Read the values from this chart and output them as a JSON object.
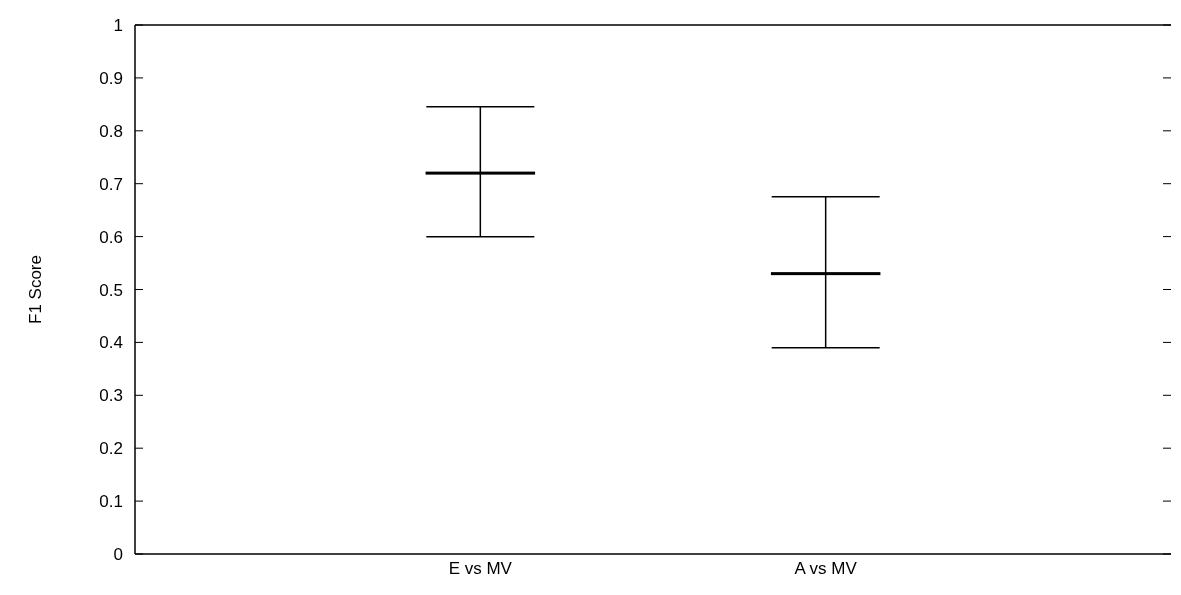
{
  "chart_data": {
    "type": "box",
    "ylabel": "F1 Score",
    "categories": [
      "E vs MV",
      "A vs MV"
    ],
    "series": [
      {
        "color": "#000000",
        "boxes": [
          {
            "low": 0.6,
            "q1": 0.72,
            "median": 0.72,
            "q3": 0.72,
            "high": 0.845
          },
          {
            "low": 0.39,
            "q1": 0.53,
            "median": 0.53,
            "q3": 0.53,
            "high": 0.675
          }
        ]
      }
    ],
    "ylim": [
      0,
      1
    ],
    "yticks": [
      0,
      0.1,
      0.2,
      0.3,
      0.4,
      0.5,
      0.6,
      0.7,
      0.8,
      0.9,
      1
    ],
    "grid": false,
    "legend": false
  }
}
